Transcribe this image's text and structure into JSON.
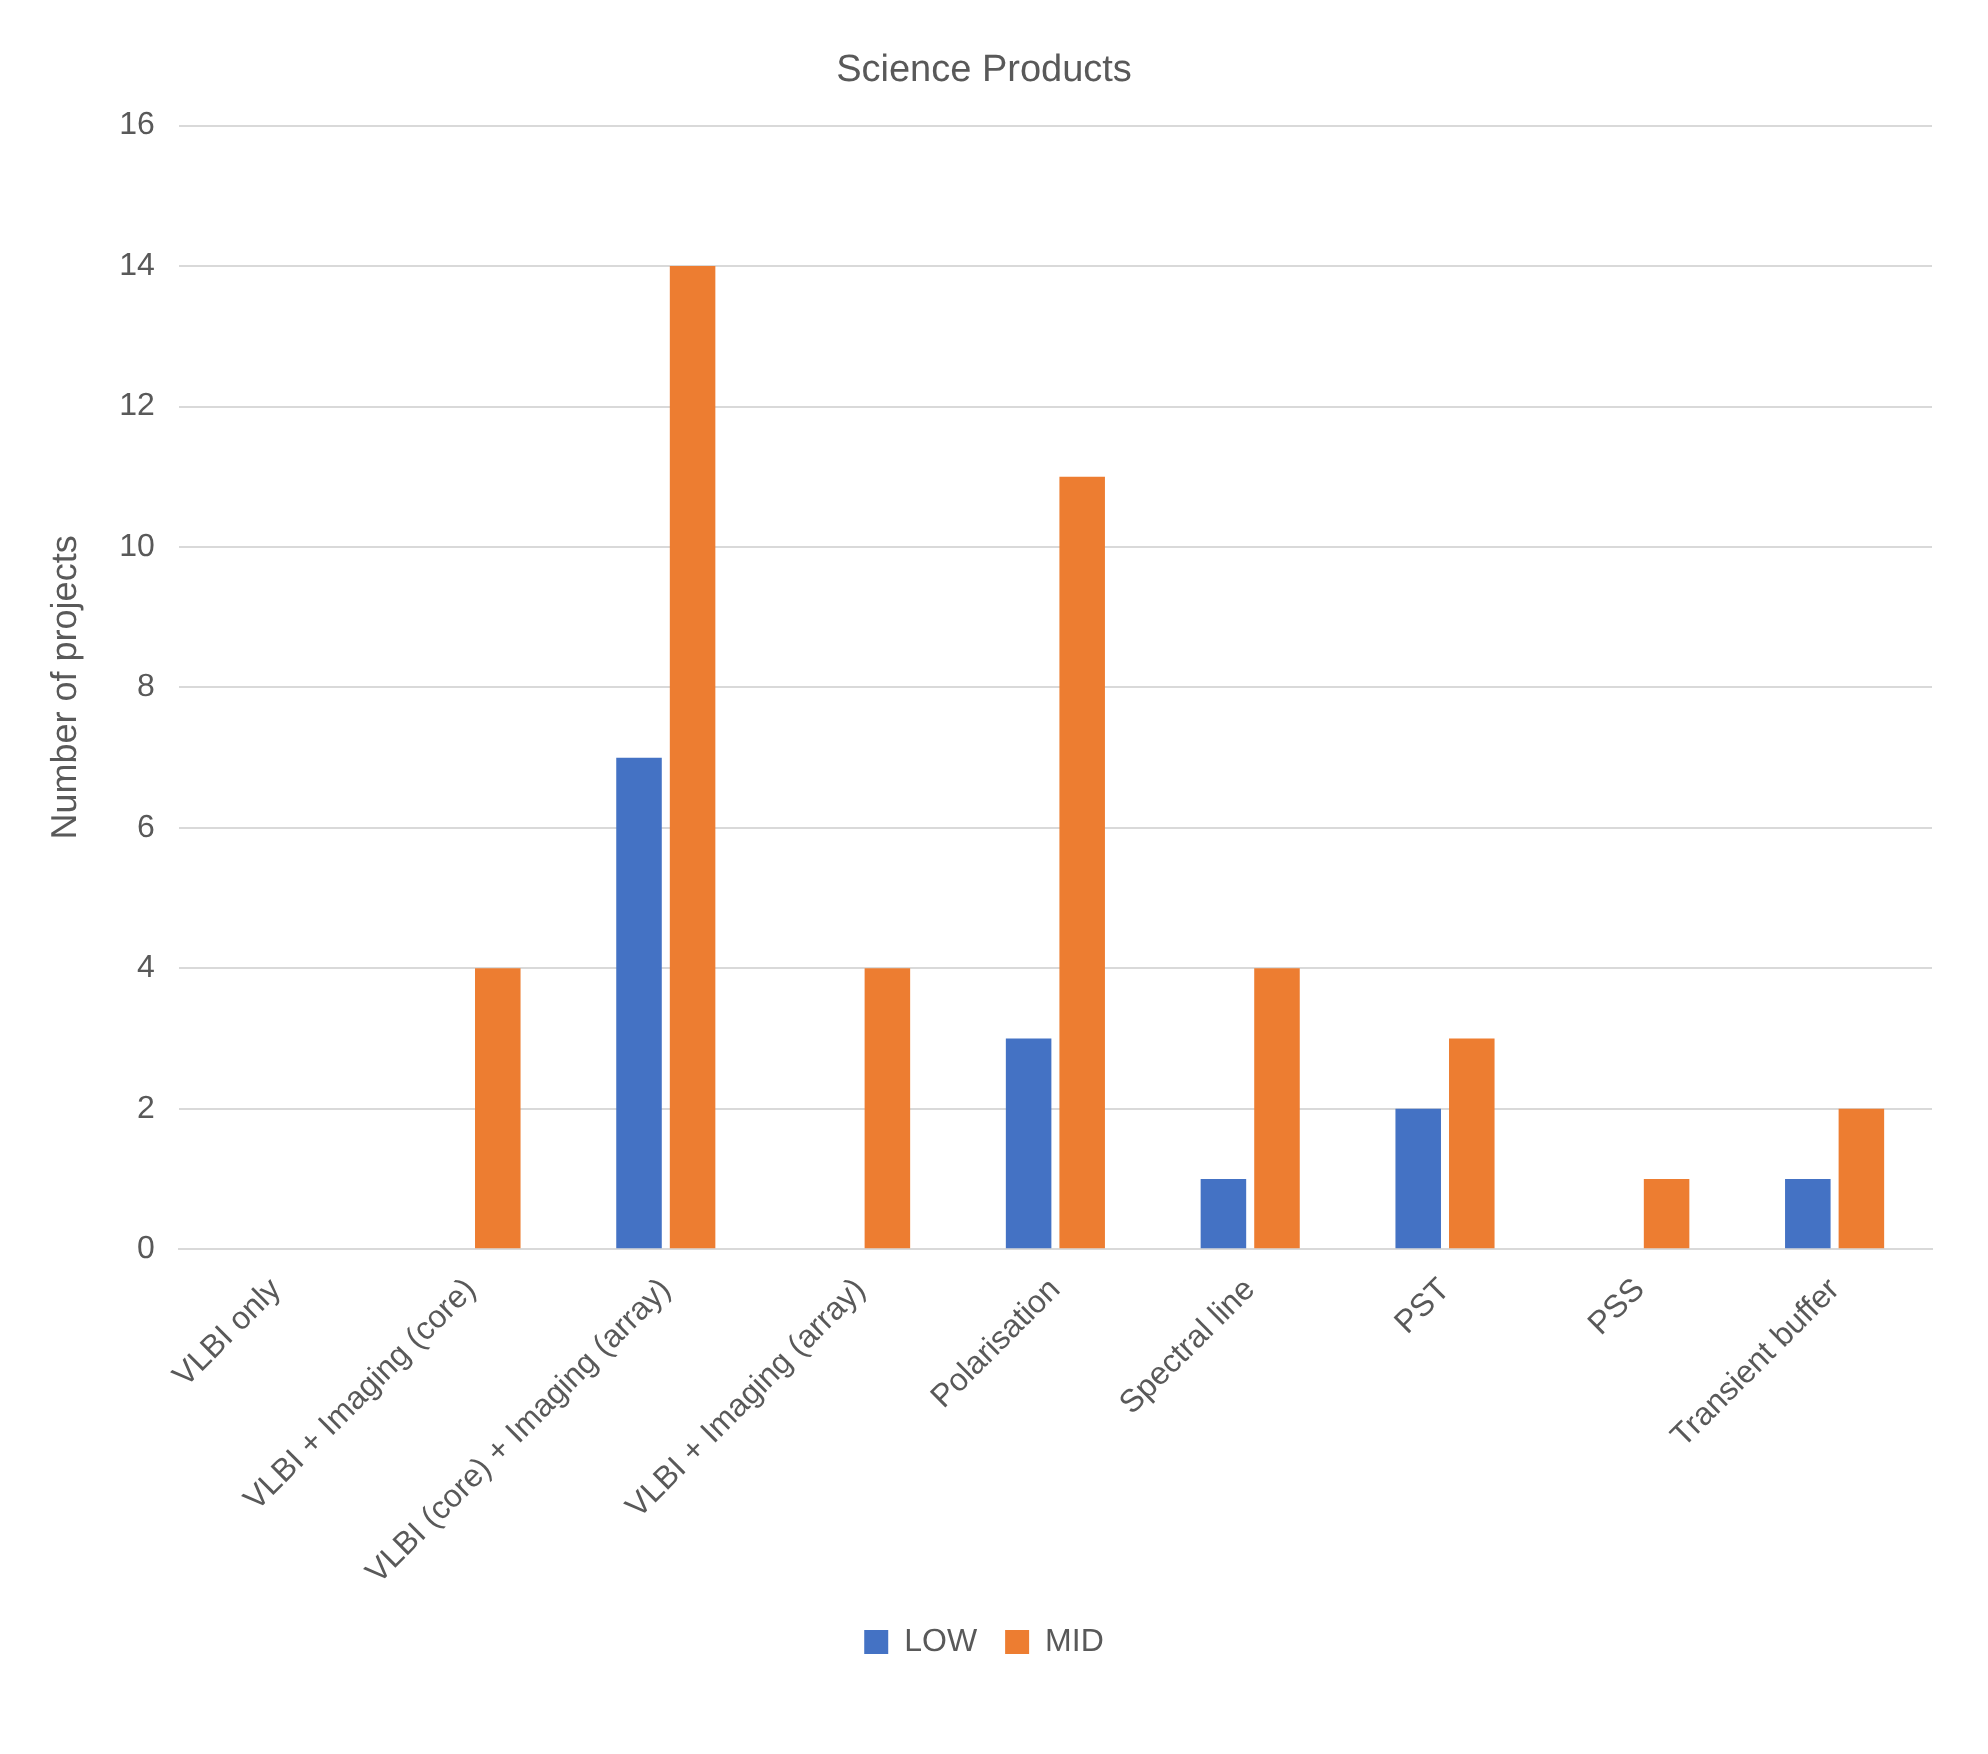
{
  "chart_data": {
    "type": "bar",
    "title": "Science Products",
    "ylabel": "Number of projects",
    "categories": [
      "VLBI only",
      "VLBI + Imaging (core)",
      "VLBI (core) + Imaging (array)",
      "VLBI + Imaging (array)",
      "Polarisation",
      "Spectral line",
      "PST",
      "PSS",
      "Transient buffer"
    ],
    "series": [
      {
        "name": "LOW",
        "color": "#4472c4",
        "values": [
          0,
          0,
          7,
          0,
          3,
          1,
          2,
          0,
          1
        ]
      },
      {
        "name": "MID",
        "color": "#ed7d31",
        "values": [
          0,
          4,
          14,
          4,
          11,
          4,
          3,
          1,
          2
        ]
      }
    ],
    "ylim": [
      0,
      16
    ],
    "yticks": [
      0,
      2,
      4,
      6,
      8,
      10,
      12,
      14,
      16
    ],
    "grid": "y",
    "legend": "bottom"
  }
}
